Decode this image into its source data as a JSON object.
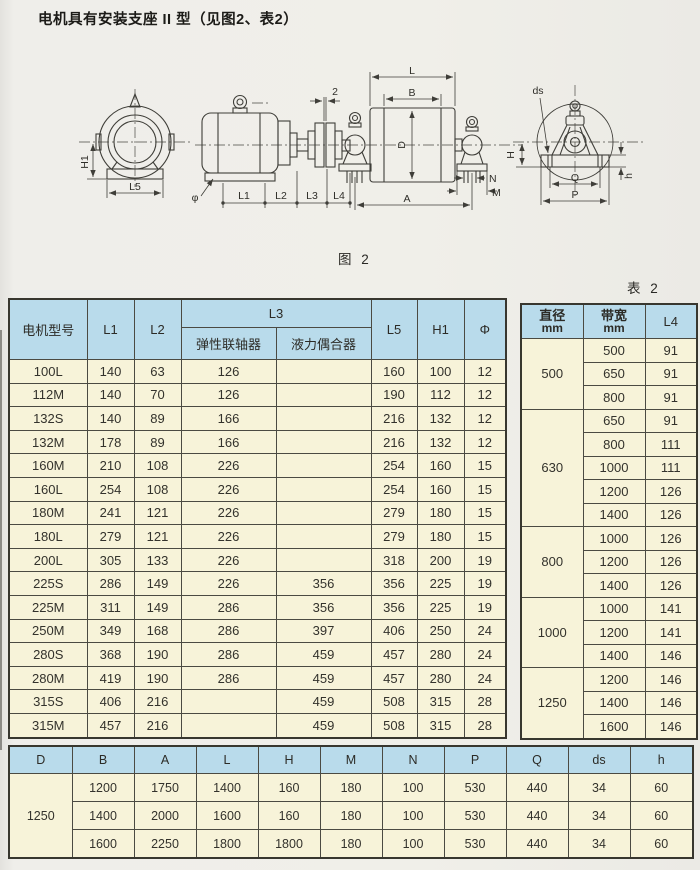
{
  "page": {
    "title": "电机具有安装支座 II 型（见图2、表2）",
    "figure_caption": "图 2",
    "table_caption": "表 2"
  },
  "diagram": {
    "labels": {
      "h1": "H1",
      "l5": "L5",
      "phi": "φ",
      "l1": "L1",
      "l2": "L2",
      "l3": "L3",
      "l4": "L4",
      "gap": "2",
      "l": "L",
      "b": "B",
      "d": "D",
      "a": "A",
      "n": "N",
      "m": "M",
      "ds": "ds",
      "h_upper": "H",
      "q": "Q",
      "p": "P",
      "h_lower": "h"
    }
  },
  "main_table": {
    "header": {
      "motor_model": "电机型号",
      "l1": "L1",
      "l2": "L2",
      "l3": "L3",
      "l3_elastic": "弹性联轴器",
      "l3_fluid": "液力偶合器",
      "l5": "L5",
      "h1": "H1",
      "phi": "Φ"
    },
    "rows": [
      [
        "100L",
        "140",
        "63",
        "126",
        "",
        "160",
        "100",
        "12"
      ],
      [
        "112M",
        "140",
        "70",
        "126",
        "",
        "190",
        "112",
        "12"
      ],
      [
        "132S",
        "140",
        "89",
        "166",
        "",
        "216",
        "132",
        "12"
      ],
      [
        "132M",
        "178",
        "89",
        "166",
        "",
        "216",
        "132",
        "12"
      ],
      [
        "160M",
        "210",
        "108",
        "226",
        "",
        "254",
        "160",
        "15"
      ],
      [
        "160L",
        "254",
        "108",
        "226",
        "",
        "254",
        "160",
        "15"
      ],
      [
        "180M",
        "241",
        "121",
        "226",
        "",
        "279",
        "180",
        "15"
      ],
      [
        "180L",
        "279",
        "121",
        "226",
        "",
        "279",
        "180",
        "15"
      ],
      [
        "200L",
        "305",
        "133",
        "226",
        "",
        "318",
        "200",
        "19"
      ],
      [
        "225S",
        "286",
        "149",
        "226",
        "356",
        "356",
        "225",
        "19"
      ],
      [
        "225M",
        "311",
        "149",
        "286",
        "356",
        "356",
        "225",
        "19"
      ],
      [
        "250M",
        "349",
        "168",
        "286",
        "397",
        "406",
        "250",
        "24"
      ],
      [
        "280S",
        "368",
        "190",
        "286",
        "459",
        "457",
        "280",
        "24"
      ],
      [
        "280M",
        "419",
        "190",
        "286",
        "459",
        "457",
        "280",
        "24"
      ],
      [
        "315S",
        "406",
        "216",
        "",
        "459",
        "508",
        "315",
        "28"
      ],
      [
        "315M",
        "457",
        "216",
        "",
        "459",
        "508",
        "315",
        "28"
      ]
    ]
  },
  "side_table": {
    "header": {
      "diameter_line1": "直径",
      "diameter_line2": "mm",
      "width_line1": "带宽",
      "width_line2": "mm",
      "l4": "L4"
    },
    "groups": [
      {
        "diameter": "500",
        "rows": [
          [
            "500",
            "91"
          ],
          [
            "650",
            "91"
          ],
          [
            "800",
            "91"
          ]
        ]
      },
      {
        "diameter": "630",
        "rows": [
          [
            "650",
            "91"
          ],
          [
            "800",
            "111"
          ],
          [
            "1000",
            "111"
          ],
          [
            "1200",
            "126"
          ],
          [
            "1400",
            "126"
          ]
        ]
      },
      {
        "diameter": "800",
        "rows": [
          [
            "1000",
            "126"
          ],
          [
            "1200",
            "126"
          ],
          [
            "1400",
            "126"
          ]
        ]
      },
      {
        "diameter": "1000",
        "rows": [
          [
            "1000",
            "141"
          ],
          [
            "1200",
            "141"
          ],
          [
            "1400",
            "146"
          ]
        ]
      },
      {
        "diameter": "1250",
        "rows": [
          [
            "1200",
            "146"
          ],
          [
            "1400",
            "146"
          ],
          [
            "1600",
            "146"
          ]
        ]
      }
    ]
  },
  "bottom_table": {
    "header": [
      "D",
      "B",
      "A",
      "L",
      "H",
      "M",
      "N",
      "P",
      "Q",
      "ds",
      "h"
    ],
    "d_value": "1250",
    "rows": [
      [
        "1200",
        "1750",
        "1400",
        "160",
        "180",
        "100",
        "530",
        "440",
        "34",
        "60"
      ],
      [
        "1400",
        "2000",
        "1600",
        "160",
        "180",
        "100",
        "530",
        "440",
        "34",
        "60"
      ],
      [
        "1600",
        "2250",
        "1800",
        "1800",
        "180",
        "100",
        "530",
        "440",
        "34",
        "60"
      ]
    ]
  },
  "colors": {
    "header_bg": "#b9dbeb",
    "cell_bg": "#f7f3d9",
    "border": "#4b4a42",
    "page_bg": "#efeeea"
  }
}
